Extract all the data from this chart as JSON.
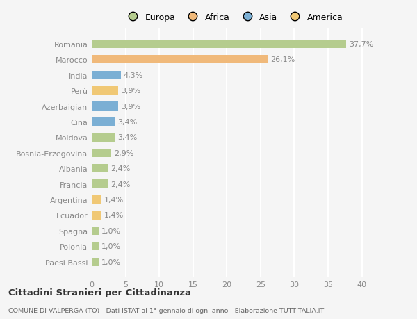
{
  "categories": [
    "Paesi Bassi",
    "Polonia",
    "Spagna",
    "Ecuador",
    "Argentina",
    "Francia",
    "Albania",
    "Bosnia-Erzegovina",
    "Moldova",
    "Cina",
    "Azerbaigian",
    "Perù",
    "India",
    "Marocco",
    "Romania"
  ],
  "values": [
    1.0,
    1.0,
    1.0,
    1.4,
    1.4,
    2.4,
    2.4,
    2.9,
    3.4,
    3.4,
    3.9,
    3.9,
    4.3,
    26.1,
    37.7
  ],
  "colors": [
    "#b5cc8e",
    "#b5cc8e",
    "#b5cc8e",
    "#f0c875",
    "#f0c875",
    "#b5cc8e",
    "#b5cc8e",
    "#b5cc8e",
    "#b5cc8e",
    "#7bafd4",
    "#7bafd4",
    "#f0c875",
    "#7bafd4",
    "#f0b97a",
    "#b5cc8e"
  ],
  "labels": [
    "1,0%",
    "1,0%",
    "1,0%",
    "1,4%",
    "1,4%",
    "2,4%",
    "2,4%",
    "2,9%",
    "3,4%",
    "3,4%",
    "3,9%",
    "3,9%",
    "4,3%",
    "26,1%",
    "37,7%"
  ],
  "legend": [
    {
      "label": "Europa",
      "color": "#b5cc8e"
    },
    {
      "label": "Africa",
      "color": "#f0b97a"
    },
    {
      "label": "Asia",
      "color": "#7bafd4"
    },
    {
      "label": "America",
      "color": "#f0c875"
    }
  ],
  "xlim": [
    0,
    42
  ],
  "xticks": [
    0,
    5,
    10,
    15,
    20,
    25,
    30,
    35,
    40
  ],
  "title1": "Cittadini Stranieri per Cittadinanza",
  "title2": "COMUNE DI VALPERGA (TO) - Dati ISTAT al 1° gennaio di ogni anno - Elaborazione TUTTITALIA.IT",
  "bg_color": "#f5f5f5",
  "grid_color": "#ffffff",
  "bar_height": 0.55,
  "label_fontsize": 8,
  "tick_fontsize": 8,
  "label_color": "#888888",
  "tick_color": "#888888"
}
